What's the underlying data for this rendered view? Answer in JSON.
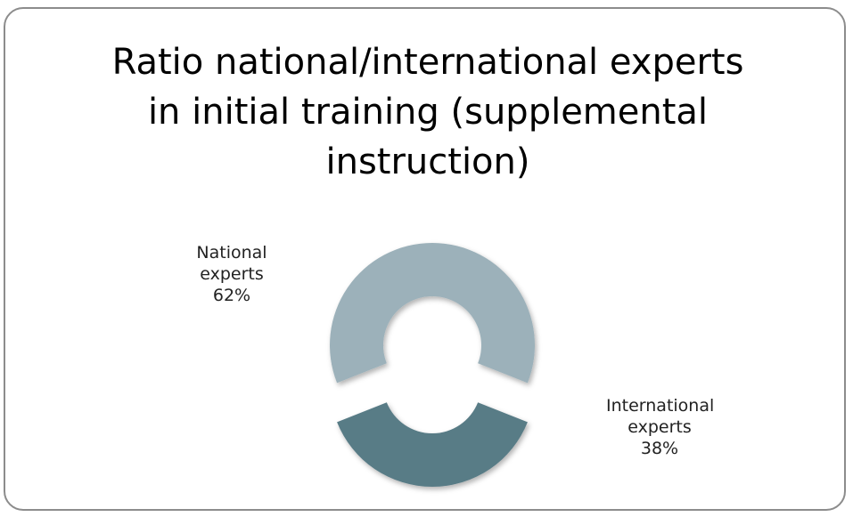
{
  "chart_data": {
    "type": "donut",
    "title": "Ratio national/international experts in initial training (supplemental instruction)",
    "categories": [
      "National experts",
      "International experts"
    ],
    "values": [
      62,
      38
    ],
    "value_labels": [
      "62%",
      "38%"
    ],
    "colors": [
      "#9cb1ba",
      "#587b86"
    ]
  }
}
